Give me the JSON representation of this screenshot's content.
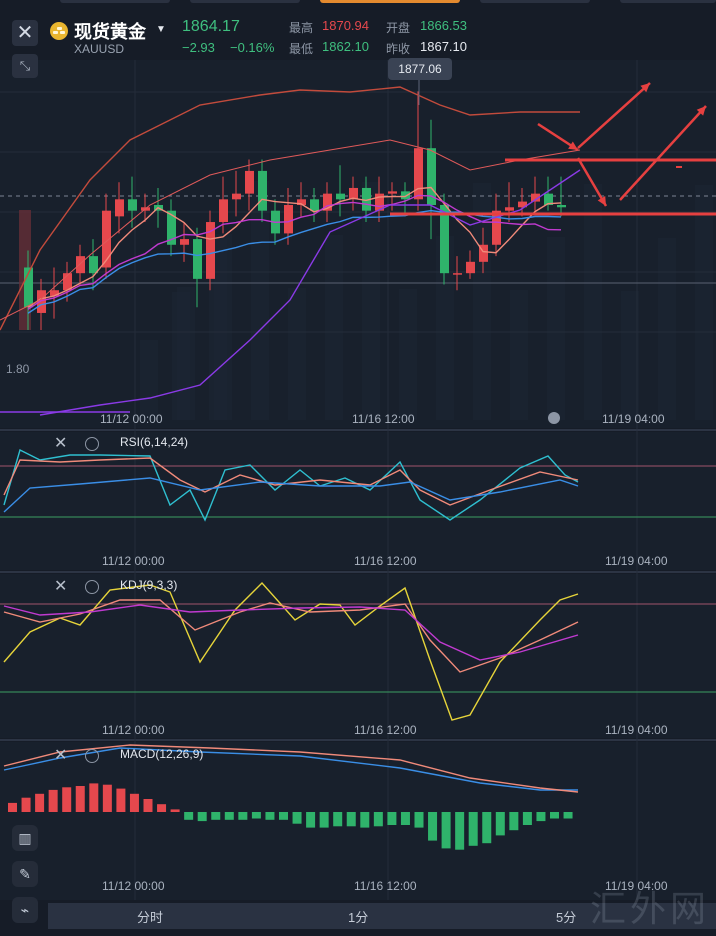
{
  "header": {
    "symbol_name": "现货黄金",
    "symbol_code": "XAUUSD",
    "price": "1864.17",
    "change": "−2.93",
    "change_pct": "−0.16%",
    "high_label": "最高",
    "high_value": "1870.94",
    "open_label": "开盘",
    "open_value": "1866.53",
    "low_label": "最低",
    "low_value": "1862.10",
    "prev_close_label": "昨收",
    "prev_close_value": "1867.10"
  },
  "main_chart": {
    "tooltip_price": "1877.06",
    "left_price_tag": "1.80",
    "time_labels": [
      "11/12 00:00",
      "11/16 12:00",
      "11/19 04:00"
    ]
  },
  "indicators": [
    {
      "title": "RSI(6,14,24)",
      "time_labels": [
        "11/12 00:00",
        "11/16 12:00",
        "11/19 04:00"
      ]
    },
    {
      "title": "KDJ(9,3,3)",
      "time_labels": [
        "11/12 00:00",
        "11/16 12:00",
        "11/19 04:00"
      ]
    },
    {
      "title": "MACD(12,26,9)",
      "time_labels": [
        "11/12 00:00",
        "11/16 12:00",
        "11/19 04:00"
      ]
    }
  ],
  "periods": [
    "分时",
    "1分",
    "5分"
  ],
  "watermark": "汇外网",
  "colors": {
    "up": "#e5484d",
    "down": "#2fb36b",
    "background": "#161c27",
    "ma_fast": "#f08a7a",
    "ma_mid": "#c03ad0",
    "ma_slow": "#3a8ee6",
    "boll": "#8a3ae6"
  },
  "icons": {
    "close": "close-icon",
    "shrink": "shrink-icon",
    "symbol": "gold-coin-icon",
    "candle_tool": "candlestick-icon",
    "draw_tool": "pencil-icon",
    "indicator_tool": "indicator-icon"
  },
  "candles": [
    [
      1861.5,
      1858.0,
      1863.0,
      1856.0
    ],
    [
      1857.5,
      1859.5,
      1860.5,
      1856.0
    ],
    [
      1859.0,
      1859.5,
      1861.5,
      1857.0
    ],
    [
      1859.5,
      1861.0,
      1862.0,
      1858.5
    ],
    [
      1861.0,
      1862.5,
      1863.5,
      1860.0
    ],
    [
      1862.5,
      1861.0,
      1864.0,
      1859.5
    ],
    [
      1861.5,
      1866.5,
      1868.0,
      1860.5
    ],
    [
      1866.0,
      1867.5,
      1869.0,
      1864.5
    ],
    [
      1867.5,
      1866.5,
      1869.5,
      1865.0
    ],
    [
      1866.5,
      1866.8,
      1868.0,
      1865.5
    ],
    [
      1867.0,
      1866.5,
      1868.5,
      1865.0
    ],
    [
      1866.5,
      1863.5,
      1867.5,
      1862.5
    ],
    [
      1863.5,
      1864.0,
      1865.5,
      1862.0
    ],
    [
      1864.0,
      1860.5,
      1865.0,
      1858.0
    ],
    [
      1860.5,
      1865.5,
      1866.5,
      1859.5
    ],
    [
      1865.5,
      1867.5,
      1869.5,
      1864.5
    ],
    [
      1867.5,
      1868.0,
      1870.0,
      1866.0
    ],
    [
      1868.0,
      1870.0,
      1871.0,
      1866.5
    ],
    [
      1870.0,
      1866.5,
      1871.0,
      1865.5
    ],
    [
      1866.5,
      1864.5,
      1867.5,
      1863.5
    ],
    [
      1864.5,
      1867.0,
      1868.5,
      1863.5
    ],
    [
      1867.0,
      1867.5,
      1869.0,
      1866.0
    ],
    [
      1867.5,
      1866.5,
      1868.5,
      1865.5
    ],
    [
      1866.5,
      1868.0,
      1869.0,
      1865.5
    ],
    [
      1868.0,
      1867.5,
      1870.5,
      1866.0
    ],
    [
      1867.5,
      1868.5,
      1869.5,
      1866.5
    ],
    [
      1868.5,
      1866.5,
      1869.5,
      1865.5
    ],
    [
      1866.5,
      1868.0,
      1869.5,
      1865.5
    ],
    [
      1868.0,
      1868.2,
      1869.0,
      1866.5
    ],
    [
      1868.2,
      1867.5,
      1869.0,
      1866.0
    ],
    [
      1867.5,
      1872.0,
      1877.0,
      1866.5
    ],
    [
      1872.0,
      1867.0,
      1874.5,
      1864.0
    ],
    [
      1867.0,
      1861.0,
      1868.0,
      1860.0
    ],
    [
      1861.0,
      1861.0,
      1862.5,
      1859.5
    ],
    [
      1861.0,
      1862.0,
      1863.0,
      1860.5
    ],
    [
      1862.0,
      1863.5,
      1865.0,
      1861.0
    ],
    [
      1863.5,
      1866.5,
      1868.0,
      1862.5
    ],
    [
      1866.5,
      1866.8,
      1869.0,
      1865.5
    ],
    [
      1866.8,
      1867.3,
      1868.5,
      1866.0
    ],
    [
      1867.3,
      1868.0,
      1869.5,
      1866.5
    ],
    [
      1868.0,
      1867.0,
      1869.5,
      1866.5
    ],
    [
      1867.0,
      1866.8,
      1869.5,
      1866.0
    ]
  ],
  "macd_hist": [
    0.35,
    0.55,
    0.7,
    0.85,
    0.95,
    1.0,
    1.1,
    1.05,
    0.9,
    0.7,
    0.5,
    0.3,
    0.1,
    -0.3,
    -0.35,
    -0.3,
    -0.3,
    -0.3,
    -0.25,
    -0.3,
    -0.3,
    -0.45,
    -0.6,
    -0.6,
    -0.55,
    -0.55,
    -0.6,
    -0.55,
    -0.5,
    -0.5,
    -0.6,
    -1.1,
    -1.4,
    -1.45,
    -1.3,
    -1.2,
    -0.9,
    -0.7,
    -0.5,
    -0.35,
    -0.25,
    -0.25
  ]
}
